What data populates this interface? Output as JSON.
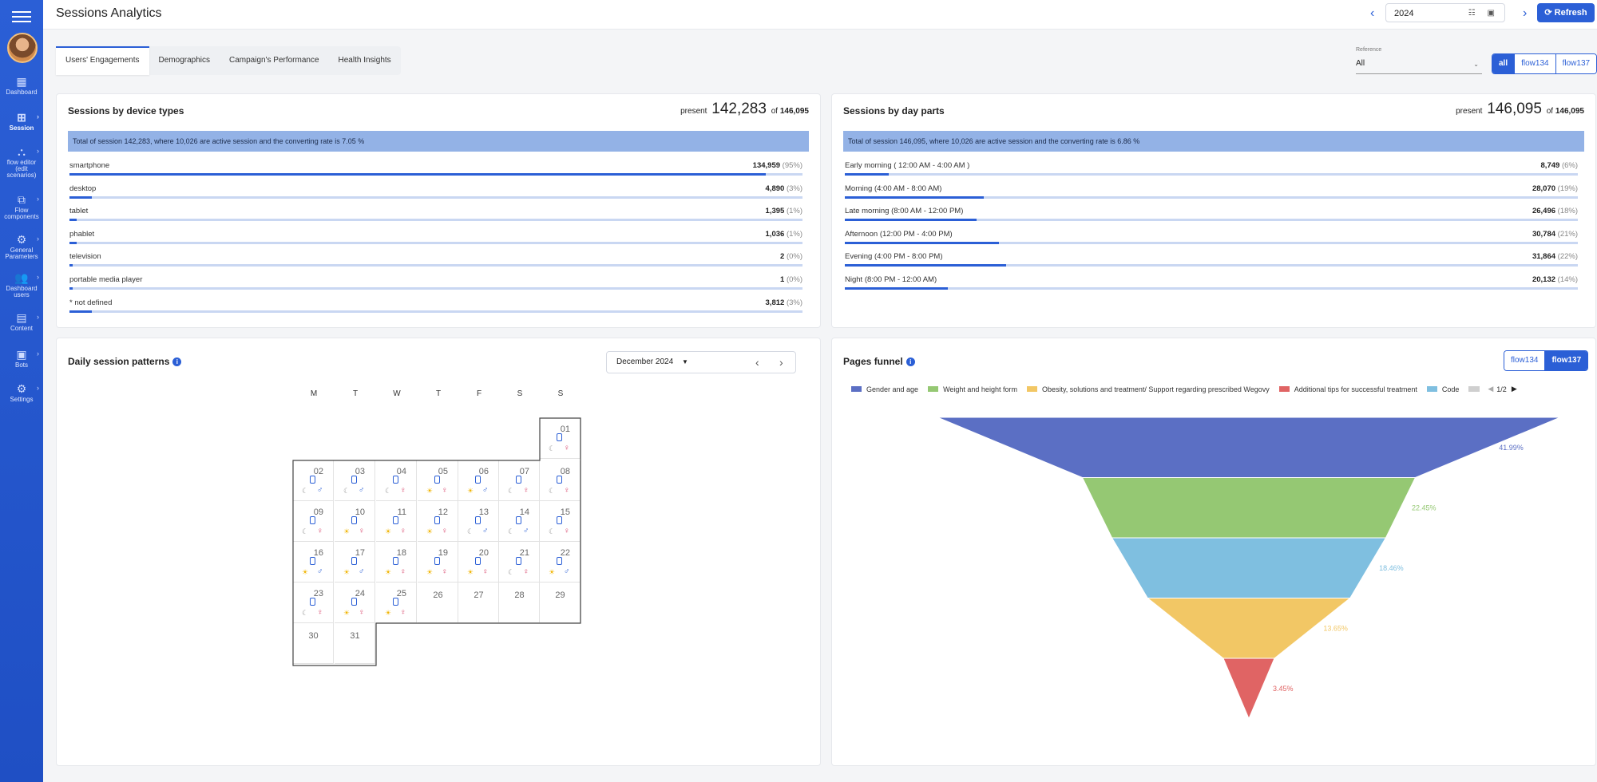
{
  "sidebar": {
    "items": [
      {
        "icon": "grid-icon",
        "label": "Dashboard",
        "glyph": "▦"
      },
      {
        "icon": "session-icon",
        "label": "Session",
        "glyph": "⊞",
        "active": true
      },
      {
        "icon": "flow-editor-icon",
        "label": "flow editor (edit scenarios)",
        "glyph": "⛬"
      },
      {
        "icon": "flow-components-icon",
        "label": "Flow components",
        "glyph": "⧉"
      },
      {
        "icon": "general-parameters-icon",
        "label": "General Parameters",
        "glyph": "⚙"
      },
      {
        "icon": "dashboard-users-icon",
        "label": "Dashboard users",
        "glyph": "👥"
      },
      {
        "icon": "content-icon",
        "label": "Content",
        "glyph": "▤"
      },
      {
        "icon": "bots-icon",
        "label": "Bots",
        "glyph": "▣"
      },
      {
        "icon": "settings-icon",
        "label": "Settings",
        "glyph": "⚙"
      }
    ]
  },
  "header": {
    "title": "Sessions Analytics",
    "year": "2024",
    "refresh_label": "Refresh",
    "prev": "‹",
    "next": "›"
  },
  "tabs": [
    "Users' Engagements",
    "Demographics",
    "Campaign's Performance",
    "Health Insights"
  ],
  "filters": {
    "reference_label": "Reference",
    "reference_value": "All",
    "flows": [
      "all",
      "flow134",
      "flow137"
    ],
    "active_flow": "all"
  },
  "device_card": {
    "title": "Sessions by device types",
    "present_label": "present",
    "present": "142,283",
    "of_label": "of",
    "total": "146,095",
    "banner": "Total of session 142,283, where 10,026 are active session and the converting rate is 7.05 %",
    "rows": [
      {
        "name": "smartphone",
        "value": "134,959",
        "pct": "(95%)",
        "ratio": 0.95
      },
      {
        "name": "desktop",
        "value": "4,890",
        "pct": "(3%)",
        "ratio": 0.03
      },
      {
        "name": "tablet",
        "value": "1,395",
        "pct": "(1%)",
        "ratio": 0.01
      },
      {
        "name": "phablet",
        "value": "1,036",
        "pct": "(1%)",
        "ratio": 0.01
      },
      {
        "name": "television",
        "value": "2",
        "pct": "(0%)",
        "ratio": 0.0
      },
      {
        "name": "portable media player",
        "value": "1",
        "pct": "(0%)",
        "ratio": 0.0
      },
      {
        "name": "* not defined",
        "value": "3,812",
        "pct": "(3%)",
        "ratio": 0.03
      }
    ]
  },
  "dayparts_card": {
    "title": "Sessions by day parts",
    "present_label": "present",
    "present": "146,095",
    "of_label": "of",
    "total": "146,095",
    "banner": "Total of session 146,095, where 10,026 are active session and the converting rate is 6.86 %",
    "rows": [
      {
        "name": "Early morning ( 12:00 AM - 4:00 AM )",
        "value": "8,749",
        "pct": "(6%)",
        "ratio": 0.06
      },
      {
        "name": "Morning (4:00 AM - 8:00 AM)",
        "value": "28,070",
        "pct": "(19%)",
        "ratio": 0.19
      },
      {
        "name": "Late morning (8:00 AM - 12:00 PM)",
        "value": "26,496",
        "pct": "(18%)",
        "ratio": 0.18
      },
      {
        "name": "Afternoon (12:00 PM - 4:00 PM)",
        "value": "30,784",
        "pct": "(21%)",
        "ratio": 0.21
      },
      {
        "name": "Evening (4:00 PM - 8:00 PM)",
        "value": "31,864",
        "pct": "(22%)",
        "ratio": 0.22
      },
      {
        "name": "Night (8:00 PM - 12:00 AM)",
        "value": "20,132",
        "pct": "(14%)",
        "ratio": 0.14
      }
    ]
  },
  "patterns_card": {
    "title": "Daily session patterns",
    "month": "December 2024",
    "weekdays": [
      "M",
      "T",
      "W",
      "T",
      "F",
      "S",
      "S"
    ],
    "days": [
      {
        "d": "01",
        "p": "moon",
        "g": "female"
      },
      {
        "d": "02",
        "p": "moon",
        "g": "male"
      },
      {
        "d": "03",
        "p": "moon",
        "g": "male"
      },
      {
        "d": "04",
        "p": "moon",
        "g": "female"
      },
      {
        "d": "05",
        "p": "sun",
        "g": "female"
      },
      {
        "d": "06",
        "p": "sun",
        "g": "male"
      },
      {
        "d": "07",
        "p": "moon",
        "g": "female"
      },
      {
        "d": "08",
        "p": "moon",
        "g": "female"
      },
      {
        "d": "09",
        "p": "moon",
        "g": "female"
      },
      {
        "d": "10",
        "p": "sun",
        "g": "female"
      },
      {
        "d": "11",
        "p": "sun",
        "g": "female"
      },
      {
        "d": "12",
        "p": "sun",
        "g": "female"
      },
      {
        "d": "13",
        "p": "moon",
        "g": "male"
      },
      {
        "d": "14",
        "p": "moon",
        "g": "male"
      },
      {
        "d": "15",
        "p": "moon",
        "g": "female"
      },
      {
        "d": "16",
        "p": "sun",
        "g": "male"
      },
      {
        "d": "17",
        "p": "sun",
        "g": "male"
      },
      {
        "d": "18",
        "p": "sun",
        "g": "female"
      },
      {
        "d": "19",
        "p": "sun",
        "g": "female"
      },
      {
        "d": "20",
        "p": "sun",
        "g": "female"
      },
      {
        "d": "21",
        "p": "moon",
        "g": "female"
      },
      {
        "d": "22",
        "p": "sun",
        "g": "male"
      },
      {
        "d": "23",
        "p": "moon",
        "g": "female"
      },
      {
        "d": "24",
        "p": "sun",
        "g": "female"
      },
      {
        "d": "25",
        "p": "sun",
        "g": "female"
      },
      {
        "d": "26"
      },
      {
        "d": "27"
      },
      {
        "d": "28"
      },
      {
        "d": "29"
      },
      {
        "d": "30"
      },
      {
        "d": "31"
      }
    ]
  },
  "funnel_card": {
    "title": "Pages funnel",
    "flows": [
      "flow134",
      "flow137"
    ],
    "active_flow": "flow137",
    "legend": [
      {
        "label": "Gender and age",
        "color": "#5b6fc4"
      },
      {
        "label": "Weight and height form",
        "color": "#95c873"
      },
      {
        "label": "Obesity, solutions and treatment/ Support regarding prescribed Wegovy",
        "color": "#f2c765"
      },
      {
        "label": "Additional tips for successful treatment",
        "color": "#e06464"
      },
      {
        "label": "Code",
        "color": "#7fbfe0"
      }
    ],
    "legend_page": "1/2"
  },
  "chart_data": {
    "type": "funnel",
    "categories": [
      "Gender and age",
      "Weight and height form",
      "Code",
      "Obesity, solutions and treatment/ Support regarding prescribed Wegovy",
      "Additional tips for successful treatment"
    ],
    "values": [
      41.99,
      22.45,
      18.46,
      13.65,
      3.45
    ],
    "labels": [
      "41.99%",
      "22.45%",
      "18.46%",
      "13.65%",
      "3.45%"
    ],
    "colors": [
      "#5b6fc4",
      "#95c873",
      "#7fbfe0",
      "#f2c765",
      "#e06464"
    ]
  }
}
